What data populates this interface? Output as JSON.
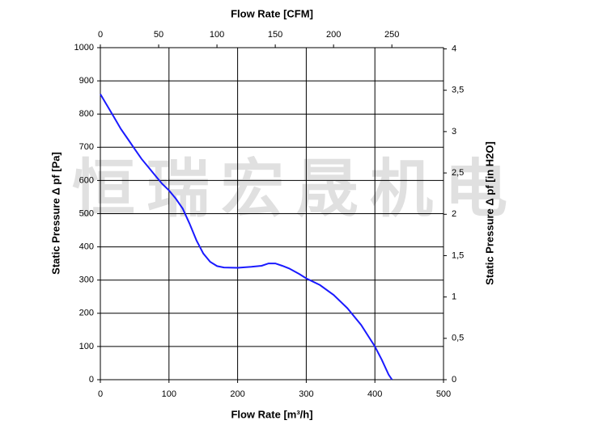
{
  "chart_data": {
    "type": "line",
    "watermark": "恒瑞宏晟机电",
    "x_label": "Flow Rate [m³/h]",
    "x2_label": "Flow Rate [CFM]",
    "y_label": "Static Pressure Δ pf [Pa]",
    "y2_label": "Static Pressure Δ pf [in H2O]",
    "color": "#1a1aff",
    "grid": true,
    "xlim": [
      0,
      500
    ],
    "xticks": [
      0,
      100,
      200,
      300,
      400,
      500
    ],
    "x2lim": [
      0,
      294.3
    ],
    "x2ticks": [
      0,
      50,
      100,
      150,
      200,
      250
    ],
    "ylim": [
      0,
      1000
    ],
    "yticks": [
      0,
      100,
      200,
      300,
      400,
      500,
      600,
      700,
      800,
      900,
      1000
    ],
    "y2lim": [
      0,
      4.015
    ],
    "y2ticks": [
      0,
      {
        "value": 0.5,
        "label": "0,5"
      },
      1,
      {
        "value": 1.5,
        "label": "1,5"
      },
      2,
      {
        "value": 2.5,
        "label": "2,5"
      },
      3,
      {
        "value": 3.5,
        "label": "3,5"
      },
      4
    ],
    "x": [
      0,
      10,
      20,
      30,
      40,
      50,
      60,
      70,
      80,
      90,
      100,
      110,
      120,
      130,
      140,
      150,
      160,
      170,
      180,
      200,
      220,
      235,
      245,
      255,
      265,
      275,
      290,
      300,
      320,
      340,
      360,
      380,
      400,
      410,
      420,
      425
    ],
    "values": [
      860,
      825,
      790,
      755,
      725,
      695,
      665,
      640,
      615,
      590,
      570,
      545,
      515,
      470,
      420,
      380,
      355,
      342,
      338,
      337,
      340,
      343,
      350,
      350,
      343,
      335,
      318,
      305,
      285,
      255,
      215,
      165,
      100,
      60,
      15,
      0
    ]
  }
}
